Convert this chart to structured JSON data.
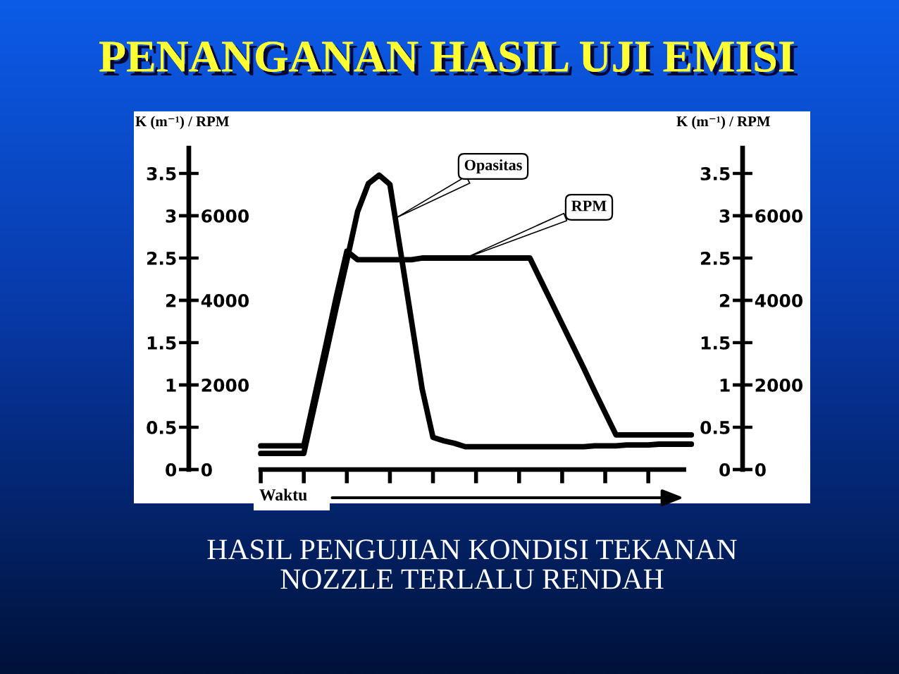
{
  "chart_data": {
    "type": "line",
    "title": "PENANGANAN HASIL UJI EMISI",
    "xlabel": "Waktu",
    "ylabel": "K (m⁻¹) / RPM",
    "y2label": "K (m⁻¹) / RPM",
    "annotations": [
      "HASIL PENGUJIAN KONDISI TEKANAN\nNOZZLE TERLALU RENDAH",
      "0",
      "2000",
      "4000",
      "6000",
      "0",
      "0.5",
      "1",
      "1.5",
      "2",
      "2.5",
      "3",
      "3.5"
    ],
    "categories": [
      null,
      null,
      null,
      null,
      null,
      null,
      null,
      null,
      null,
      null,
      null,
      null,
      null,
      null,
      null,
      null,
      null,
      null,
      null,
      null,
      null,
      null,
      null,
      null,
      null,
      null,
      null,
      null,
      null,
      null,
      null,
      null,
      null,
      null,
      null,
      null,
      null,
      null,
      null,
      null,
      null
    ],
    "series": [
      {
        "name": "Opasitas",
        "color": "#000000",
        "values": [
          0.19,
          0.19,
          0.19,
          0.19,
          0.19,
          0.76,
          1.33,
          1.91,
          2.47,
          3.05,
          3.38,
          3.48,
          3.37,
          2.57,
          1.76,
          0.95,
          0.38,
          0.34,
          0.31,
          0.27,
          0.27,
          0.27,
          0.27,
          0.27,
          0.27,
          0.27,
          0.27,
          0.27,
          0.27,
          0.27,
          0.27,
          0.28,
          0.28,
          0.28,
          0.29,
          0.29,
          0.29,
          0.3,
          0.3,
          0.3,
          0.3
        ]
      },
      {
        "name": "RPM",
        "color": "#000000",
        "axis": "y2",
        "values": [
          560,
          560,
          560,
          560,
          560,
          1720,
          2880,
          4060,
          5160,
          4960,
          4960,
          4960,
          4960,
          4960,
          4960,
          5000,
          5000,
          5000,
          5000,
          5000,
          5000,
          5000,
          5000,
          5000,
          5000,
          5000,
          4480,
          3960,
          3440,
          2920,
          2400,
          1860,
          1340,
          820,
          820,
          820,
          820,
          820,
          820,
          820,
          820
        ]
      }
    ],
    "ylim": [
      0,
      3.8
    ],
    "yticks": [
      0,
      0.5,
      1,
      1.5,
      2,
      2.5,
      3,
      3.5
    ],
    "y2lim": [
      0,
      7600
    ],
    "y2ticks": [
      0,
      2000,
      4000,
      6000
    ],
    "tick_labels": "y",
    "line_style": "solid"
  }
}
